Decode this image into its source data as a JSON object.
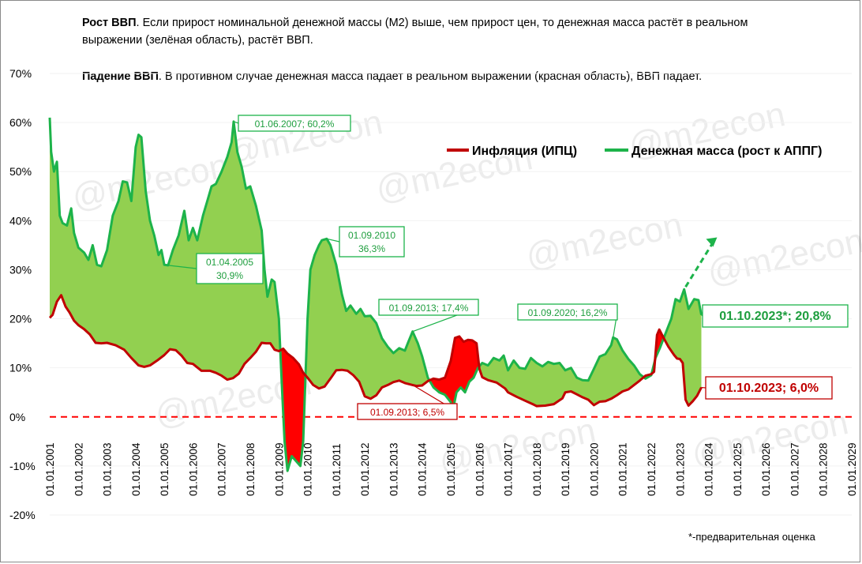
{
  "notes": {
    "growth_title": "Рост ВВП",
    "growth_text": ". Если прирост номинальной денежной  массы (М2) выше, чем прирост цен,  то денежная масса растёт в реальном выражении (зелёная область), растёт ВВП.",
    "decline_title": "Падение ВВП",
    "decline_text": ". В противном случае денежная масса падает в реальном выражении (красная область), ВВП падает."
  },
  "footnote": "*-предварительная оценка",
  "watermark": "@m2econ",
  "colors": {
    "inflation": "#c00000",
    "money": "#1db34a",
    "growth_fill": "#92d050",
    "decline_fill": "#ff0000",
    "green_text": "#1e9e3e"
  },
  "chart_data": {
    "type": "area",
    "ylim": [
      -20,
      70
    ],
    "yticks": [
      -20,
      -10,
      0,
      10,
      20,
      30,
      40,
      50,
      60,
      70
    ],
    "ytick_labels": [
      "-20%",
      "-10%",
      "0%",
      "10%",
      "20%",
      "30%",
      "40%",
      "50%",
      "60%",
      "70%"
    ],
    "xlim": [
      2001,
      2029
    ],
    "xtick_labels": [
      "01.01.2001",
      "01.01.2002",
      "01.01.2003",
      "01.01.2004",
      "01.01.2005",
      "01.01.2006",
      "01.01.2007",
      "01.01.2008",
      "01.01.2009",
      "01.01.2010",
      "01.01.2011",
      "01.01.2012",
      "01.01.2013",
      "01.01.2014",
      "01.01.2015",
      "01.01.2016",
      "01.01.2017",
      "01.01.2018",
      "01.01.2019",
      "01.01.2020",
      "01.01.2021",
      "01.01.2022",
      "01.01.2023",
      "01.01.2024",
      "01.01.2025",
      "01.01.2026",
      "01.01.2027",
      "01.01.2028",
      "01.01.2029"
    ],
    "zero_line": {
      "y": 0,
      "style": "dashed",
      "color": "#ff0000"
    },
    "legend": {
      "position": "top-right"
    },
    "series": [
      {
        "name": "Инфляция (ИПЦ)",
        "color": "#c00000",
        "points": [
          [
            2001.0,
            20.2
          ],
          [
            2001.1,
            20.8
          ],
          [
            2001.25,
            23.5
          ],
          [
            2001.4,
            24.8
          ],
          [
            2001.55,
            22.5
          ],
          [
            2001.7,
            21.2
          ],
          [
            2001.85,
            19.6
          ],
          [
            2002.0,
            18.7
          ],
          [
            2002.2,
            17.9
          ],
          [
            2002.4,
            16.8
          ],
          [
            2002.6,
            15.1
          ],
          [
            2002.8,
            15.0
          ],
          [
            2003.0,
            15.1
          ],
          [
            2003.3,
            14.6
          ],
          [
            2003.6,
            13.7
          ],
          [
            2003.85,
            12.0
          ],
          [
            2004.1,
            10.5
          ],
          [
            2004.3,
            10.2
          ],
          [
            2004.5,
            10.5
          ],
          [
            2004.75,
            11.5
          ],
          [
            2005.0,
            12.6
          ],
          [
            2005.2,
            13.8
          ],
          [
            2005.4,
            13.6
          ],
          [
            2005.6,
            12.5
          ],
          [
            2005.8,
            11.0
          ],
          [
            2006.0,
            10.8
          ],
          [
            2006.3,
            9.4
          ],
          [
            2006.6,
            9.4
          ],
          [
            2006.8,
            9.0
          ],
          [
            2007.0,
            8.4
          ],
          [
            2007.2,
            7.6
          ],
          [
            2007.4,
            7.9
          ],
          [
            2007.6,
            8.8
          ],
          [
            2007.8,
            10.8
          ],
          [
            2008.0,
            12.0
          ],
          [
            2008.2,
            13.3
          ],
          [
            2008.4,
            15.1
          ],
          [
            2008.55,
            15.0
          ],
          [
            2008.7,
            15.0
          ],
          [
            2008.85,
            13.7
          ],
          [
            2009.0,
            13.4
          ],
          [
            2009.15,
            13.9
          ],
          [
            2009.3,
            12.9
          ],
          [
            2009.5,
            12.0
          ],
          [
            2009.7,
            10.7
          ],
          [
            2009.85,
            9.0
          ],
          [
            2010.0,
            8.0
          ],
          [
            2010.2,
            6.5
          ],
          [
            2010.4,
            5.8
          ],
          [
            2010.6,
            6.2
          ],
          [
            2010.8,
            7.8
          ],
          [
            2011.0,
            9.5
          ],
          [
            2011.2,
            9.6
          ],
          [
            2011.4,
            9.4
          ],
          [
            2011.6,
            8.5
          ],
          [
            2011.8,
            7.2
          ],
          [
            2012.0,
            4.2
          ],
          [
            2012.2,
            3.7
          ],
          [
            2012.4,
            4.4
          ],
          [
            2012.6,
            6.0
          ],
          [
            2012.8,
            6.5
          ],
          [
            2013.0,
            7.1
          ],
          [
            2013.2,
            7.4
          ],
          [
            2013.4,
            6.9
          ],
          [
            2013.67,
            6.5
          ],
          [
            2013.8,
            6.3
          ],
          [
            2014.0,
            6.4
          ],
          [
            2014.2,
            7.3
          ],
          [
            2014.4,
            7.8
          ],
          [
            2014.6,
            7.6
          ],
          [
            2014.8,
            8.0
          ],
          [
            2015.0,
            11.4
          ],
          [
            2015.15,
            16.1
          ],
          [
            2015.3,
            16.4
          ],
          [
            2015.45,
            15.3
          ],
          [
            2015.6,
            15.7
          ],
          [
            2015.75,
            15.6
          ],
          [
            2015.9,
            15.0
          ],
          [
            2016.0,
            9.8
          ],
          [
            2016.1,
            8.1
          ],
          [
            2016.3,
            7.5
          ],
          [
            2016.6,
            7.0
          ],
          [
            2016.9,
            5.8
          ],
          [
            2017.0,
            5.0
          ],
          [
            2017.3,
            4.1
          ],
          [
            2017.6,
            3.3
          ],
          [
            2017.9,
            2.5
          ],
          [
            2018.0,
            2.2
          ],
          [
            2018.3,
            2.3
          ],
          [
            2018.6,
            2.6
          ],
          [
            2018.9,
            3.8
          ],
          [
            2019.0,
            5.0
          ],
          [
            2019.2,
            5.2
          ],
          [
            2019.4,
            4.6
          ],
          [
            2019.6,
            4.0
          ],
          [
            2019.8,
            3.5
          ],
          [
            2020.0,
            2.4
          ],
          [
            2020.2,
            3.1
          ],
          [
            2020.4,
            3.2
          ],
          [
            2020.6,
            3.7
          ],
          [
            2020.8,
            4.4
          ],
          [
            2021.0,
            5.2
          ],
          [
            2021.2,
            5.6
          ],
          [
            2021.4,
            6.5
          ],
          [
            2021.6,
            7.4
          ],
          [
            2021.8,
            8.4
          ],
          [
            2022.0,
            8.7
          ],
          [
            2022.1,
            9.2
          ],
          [
            2022.2,
            16.7
          ],
          [
            2022.28,
            17.8
          ],
          [
            2022.45,
            15.9
          ],
          [
            2022.6,
            14.3
          ],
          [
            2022.8,
            12.6
          ],
          [
            2022.9,
            11.9
          ],
          [
            2023.0,
            11.8
          ],
          [
            2023.1,
            11.0
          ],
          [
            2023.2,
            3.5
          ],
          [
            2023.3,
            2.3
          ],
          [
            2023.45,
            3.2
          ],
          [
            2023.6,
            4.3
          ],
          [
            2023.75,
            6.0
          ]
        ]
      },
      {
        "name": "Денежная масса (рост к АППГ)",
        "color": "#1db34a",
        "points": [
          [
            2001.0,
            61.0
          ],
          [
            2001.05,
            54.0
          ],
          [
            2001.15,
            50.0
          ],
          [
            2001.25,
            52.0
          ],
          [
            2001.35,
            41.0
          ],
          [
            2001.45,
            39.5
          ],
          [
            2001.6,
            39.0
          ],
          [
            2001.75,
            42.5
          ],
          [
            2001.85,
            37.5
          ],
          [
            2002.0,
            34.5
          ],
          [
            2002.2,
            33.5
          ],
          [
            2002.35,
            32.0
          ],
          [
            2002.5,
            35.0
          ],
          [
            2002.65,
            31.0
          ],
          [
            2002.8,
            30.7
          ],
          [
            2003.0,
            34.0
          ],
          [
            2003.2,
            41.0
          ],
          [
            2003.4,
            44.0
          ],
          [
            2003.55,
            48.0
          ],
          [
            2003.7,
            47.8
          ],
          [
            2003.85,
            44.0
          ],
          [
            2004.0,
            55.0
          ],
          [
            2004.1,
            57.5
          ],
          [
            2004.2,
            57.0
          ],
          [
            2004.35,
            46.0
          ],
          [
            2004.5,
            40.0
          ],
          [
            2004.65,
            37.0
          ],
          [
            2004.8,
            33.0
          ],
          [
            2004.9,
            34.0
          ],
          [
            2005.0,
            31.0
          ],
          [
            2005.13,
            30.9
          ],
          [
            2005.3,
            34.0
          ],
          [
            2005.5,
            37.0
          ],
          [
            2005.7,
            42.0
          ],
          [
            2005.85,
            36.0
          ],
          [
            2006.0,
            38.5
          ],
          [
            2006.15,
            36.0
          ],
          [
            2006.35,
            41.0
          ],
          [
            2006.5,
            44.0
          ],
          [
            2006.65,
            47.0
          ],
          [
            2006.8,
            47.5
          ],
          [
            2007.0,
            50.0
          ],
          [
            2007.2,
            53.0
          ],
          [
            2007.35,
            56.0
          ],
          [
            2007.42,
            60.2
          ],
          [
            2007.55,
            54.0
          ],
          [
            2007.7,
            51.0
          ],
          [
            2007.85,
            46.5
          ],
          [
            2008.0,
            47.0
          ],
          [
            2008.2,
            43.0
          ],
          [
            2008.4,
            38.0
          ],
          [
            2008.5,
            30.0
          ],
          [
            2008.6,
            24.5
          ],
          [
            2008.75,
            28.0
          ],
          [
            2008.85,
            27.5
          ],
          [
            2009.0,
            20.0
          ],
          [
            2009.1,
            7.0
          ],
          [
            2009.2,
            -5.0
          ],
          [
            2009.3,
            -11.0
          ],
          [
            2009.45,
            -8.0
          ],
          [
            2009.6,
            -9.0
          ],
          [
            2009.75,
            -10.0
          ],
          [
            2009.85,
            -5.0
          ],
          [
            2010.0,
            20.0
          ],
          [
            2010.1,
            30.0
          ],
          [
            2010.25,
            33.0
          ],
          [
            2010.4,
            35.0
          ],
          [
            2010.5,
            36.0
          ],
          [
            2010.67,
            36.3
          ],
          [
            2010.8,
            35.0
          ],
          [
            2011.0,
            31.0
          ],
          [
            2011.2,
            25.0
          ],
          [
            2011.35,
            21.6
          ],
          [
            2011.5,
            22.7
          ],
          [
            2011.7,
            21.0
          ],
          [
            2011.85,
            22.0
          ],
          [
            2012.0,
            20.5
          ],
          [
            2012.2,
            20.6
          ],
          [
            2012.4,
            19.1
          ],
          [
            2012.6,
            16.0
          ],
          [
            2012.8,
            14.3
          ],
          [
            2013.0,
            13.0
          ],
          [
            2013.2,
            14.0
          ],
          [
            2013.4,
            13.5
          ],
          [
            2013.5,
            15.0
          ],
          [
            2013.67,
            17.4
          ],
          [
            2013.85,
            15.0
          ],
          [
            2014.0,
            12.4
          ],
          [
            2014.2,
            8.0
          ],
          [
            2014.4,
            6.0
          ],
          [
            2014.6,
            5.0
          ],
          [
            2014.8,
            4.5
          ],
          [
            2015.0,
            3.0
          ],
          [
            2015.08,
            1.5
          ],
          [
            2015.2,
            5.0
          ],
          [
            2015.35,
            6.0
          ],
          [
            2015.5,
            5.0
          ],
          [
            2015.65,
            7.2
          ],
          [
            2015.8,
            8.0
          ],
          [
            2015.95,
            10.0
          ],
          [
            2016.1,
            11.0
          ],
          [
            2016.3,
            10.5
          ],
          [
            2016.5,
            12.0
          ],
          [
            2016.7,
            11.5
          ],
          [
            2016.85,
            12.5
          ],
          [
            2017.0,
            9.5
          ],
          [
            2017.2,
            11.5
          ],
          [
            2017.4,
            10.0
          ],
          [
            2017.6,
            9.8
          ],
          [
            2017.8,
            12.0
          ],
          [
            2018.0,
            11.0
          ],
          [
            2018.2,
            10.3
          ],
          [
            2018.4,
            11.2
          ],
          [
            2018.6,
            10.8
          ],
          [
            2018.8,
            11.0
          ],
          [
            2019.0,
            9.5
          ],
          [
            2019.2,
            10.0
          ],
          [
            2019.4,
            8.0
          ],
          [
            2019.6,
            7.5
          ],
          [
            2019.8,
            7.4
          ],
          [
            2020.0,
            9.8
          ],
          [
            2020.2,
            12.3
          ],
          [
            2020.4,
            12.8
          ],
          [
            2020.6,
            14.6
          ],
          [
            2020.67,
            16.2
          ],
          [
            2020.8,
            15.8
          ],
          [
            2021.0,
            13.5
          ],
          [
            2021.2,
            11.8
          ],
          [
            2021.4,
            10.5
          ],
          [
            2021.6,
            8.7
          ],
          [
            2021.8,
            7.8
          ],
          [
            2022.0,
            8.5
          ],
          [
            2022.15,
            12.0
          ],
          [
            2022.3,
            14.0
          ],
          [
            2022.5,
            17.0
          ],
          [
            2022.7,
            20.0
          ],
          [
            2022.85,
            24.0
          ],
          [
            2023.0,
            23.5
          ],
          [
            2023.15,
            26.0
          ],
          [
            2023.3,
            22.0
          ],
          [
            2023.5,
            24.0
          ],
          [
            2023.65,
            23.8
          ],
          [
            2023.75,
            20.8
          ]
        ]
      }
    ],
    "annotations": [
      {
        "text": "01.06.2007; 60,2%",
        "series": "money"
      },
      {
        "text": "01.04.2005",
        "text2": "30,9%",
        "series": "money"
      },
      {
        "text": "01.09.2010",
        "text2": "36,3%",
        "series": "money"
      },
      {
        "text": "01.09.2013; 17,4%",
        "series": "money"
      },
      {
        "text": "01.09.2020; 16,2%",
        "series": "money"
      },
      {
        "text": "01.10.2023*; 20,8%",
        "series": "money"
      },
      {
        "text": "01.09.2013; 6,5%",
        "series": "inflation"
      },
      {
        "text": "01.10.2023; 6,0%",
        "series": "inflation"
      }
    ]
  }
}
